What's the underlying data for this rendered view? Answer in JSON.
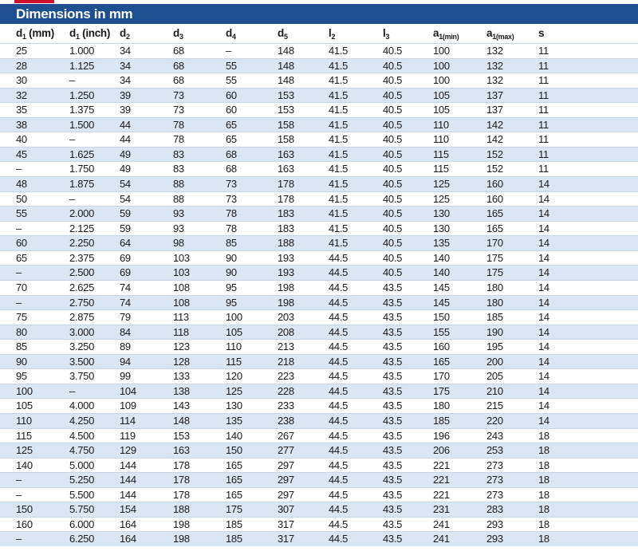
{
  "header": {
    "title": "Dimensions in mm"
  },
  "table": {
    "columns": [
      {
        "base": "d",
        "sub": "1",
        "suffix": " (mm)"
      },
      {
        "base": "d",
        "sub": "1",
        "suffix": " (inch)"
      },
      {
        "base": "d",
        "sub": "2"
      },
      {
        "base": "d",
        "sub": "3"
      },
      {
        "base": "d",
        "sub": "4"
      },
      {
        "base": "d",
        "sub": "5"
      },
      {
        "base": "l",
        "sub": "2"
      },
      {
        "base": "l",
        "sub": "3"
      },
      {
        "base": "a",
        "sub": "1(min)"
      },
      {
        "base": "a",
        "sub": "1(max)"
      },
      {
        "base": "s"
      }
    ],
    "rows": [
      [
        "25",
        "1.000",
        "34",
        "68",
        "–",
        "148",
        "41.5",
        "40.5",
        "100",
        "132",
        "11"
      ],
      [
        "28",
        "1.125",
        "34",
        "68",
        "55",
        "148",
        "41.5",
        "40.5",
        "100",
        "132",
        "11"
      ],
      [
        "30",
        "–",
        "34",
        "68",
        "55",
        "148",
        "41.5",
        "40.5",
        "100",
        "132",
        "11"
      ],
      [
        "32",
        "1.250",
        "39",
        "73",
        "60",
        "153",
        "41.5",
        "40.5",
        "105",
        "137",
        "11"
      ],
      [
        "35",
        "1.375",
        "39",
        "73",
        "60",
        "153",
        "41.5",
        "40.5",
        "105",
        "137",
        "11"
      ],
      [
        "38",
        "1.500",
        "44",
        "78",
        "65",
        "158",
        "41.5",
        "40.5",
        "110",
        "142",
        "11"
      ],
      [
        "40",
        "–",
        "44",
        "78",
        "65",
        "158",
        "41.5",
        "40.5",
        "110",
        "142",
        "11"
      ],
      [
        "45",
        "1.625",
        "49",
        "83",
        "68",
        "163",
        "41.5",
        "40.5",
        "115",
        "152",
        "11"
      ],
      [
        "–",
        "1.750",
        "49",
        "83",
        "68",
        "163",
        "41.5",
        "40.5",
        "115",
        "152",
        "11"
      ],
      [
        "48",
        "1.875",
        "54",
        "88",
        "73",
        "178",
        "41.5",
        "40.5",
        "125",
        "160",
        "14"
      ],
      [
        "50",
        "–",
        "54",
        "88",
        "73",
        "178",
        "41.5",
        "40.5",
        "125",
        "160",
        "14"
      ],
      [
        "55",
        "2.000",
        "59",
        "93",
        "78",
        "183",
        "41.5",
        "40.5",
        "130",
        "165",
        "14"
      ],
      [
        "–",
        "2.125",
        "59",
        "93",
        "78",
        "183",
        "41.5",
        "40.5",
        "130",
        "165",
        "14"
      ],
      [
        "60",
        "2.250",
        "64",
        "98",
        "85",
        "188",
        "41.5",
        "40.5",
        "135",
        "170",
        "14"
      ],
      [
        "65",
        "2.375",
        "69",
        "103",
        "90",
        "193",
        "44.5",
        "40.5",
        "140",
        "175",
        "14"
      ],
      [
        "–",
        "2.500",
        "69",
        "103",
        "90",
        "193",
        "44.5",
        "40.5",
        "140",
        "175",
        "14"
      ],
      [
        "70",
        "2.625",
        "74",
        "108",
        "95",
        "198",
        "44.5",
        "43.5",
        "145",
        "180",
        "14"
      ],
      [
        "–",
        "2.750",
        "74",
        "108",
        "95",
        "198",
        "44.5",
        "43.5",
        "145",
        "180",
        "14"
      ],
      [
        "75",
        "2.875",
        "79",
        "113",
        "100",
        "203",
        "44.5",
        "43.5",
        "150",
        "185",
        "14"
      ],
      [
        "80",
        "3.000",
        "84",
        "118",
        "105",
        "208",
        "44.5",
        "43.5",
        "155",
        "190",
        "14"
      ],
      [
        "85",
        "3.250",
        "89",
        "123",
        "110",
        "213",
        "44.5",
        "43.5",
        "160",
        "195",
        "14"
      ],
      [
        "90",
        "3.500",
        "94",
        "128",
        "115",
        "218",
        "44.5",
        "43.5",
        "165",
        "200",
        "14"
      ],
      [
        "95",
        "3.750",
        "99",
        "133",
        "120",
        "223",
        "44.5",
        "43.5",
        "170",
        "205",
        "14"
      ],
      [
        "100",
        "–",
        "104",
        "138",
        "125",
        "228",
        "44.5",
        "43.5",
        "175",
        "210",
        "14"
      ],
      [
        "105",
        "4.000",
        "109",
        "143",
        "130",
        "233",
        "44.5",
        "43.5",
        "180",
        "215",
        "14"
      ],
      [
        "110",
        "4.250",
        "114",
        "148",
        "135",
        "238",
        "44.5",
        "43.5",
        "185",
        "220",
        "14"
      ],
      [
        "115",
        "4.500",
        "119",
        "153",
        "140",
        "267",
        "44.5",
        "43.5",
        "196",
        "243",
        "18"
      ],
      [
        "125",
        "4.750",
        "129",
        "163",
        "150",
        "277",
        "44.5",
        "43.5",
        "206",
        "253",
        "18"
      ],
      [
        "140",
        "5.000",
        "144",
        "178",
        "165",
        "297",
        "44.5",
        "43.5",
        "221",
        "273",
        "18"
      ],
      [
        "–",
        "5.250",
        "144",
        "178",
        "165",
        "297",
        "44.5",
        "43.5",
        "221",
        "273",
        "18"
      ],
      [
        "–",
        "5.500",
        "144",
        "178",
        "165",
        "297",
        "44.5",
        "43.5",
        "221",
        "273",
        "18"
      ],
      [
        "150",
        "5.750",
        "154",
        "188",
        "175",
        "307",
        "44.5",
        "43.5",
        "231",
        "283",
        "18"
      ],
      [
        "160",
        "6.000",
        "164",
        "198",
        "185",
        "317",
        "44.5",
        "43.5",
        "241",
        "293",
        "18"
      ],
      [
        "–",
        "6.250",
        "164",
        "198",
        "185",
        "317",
        "44.5",
        "43.5",
        "241",
        "293",
        "18"
      ]
    ]
  }
}
